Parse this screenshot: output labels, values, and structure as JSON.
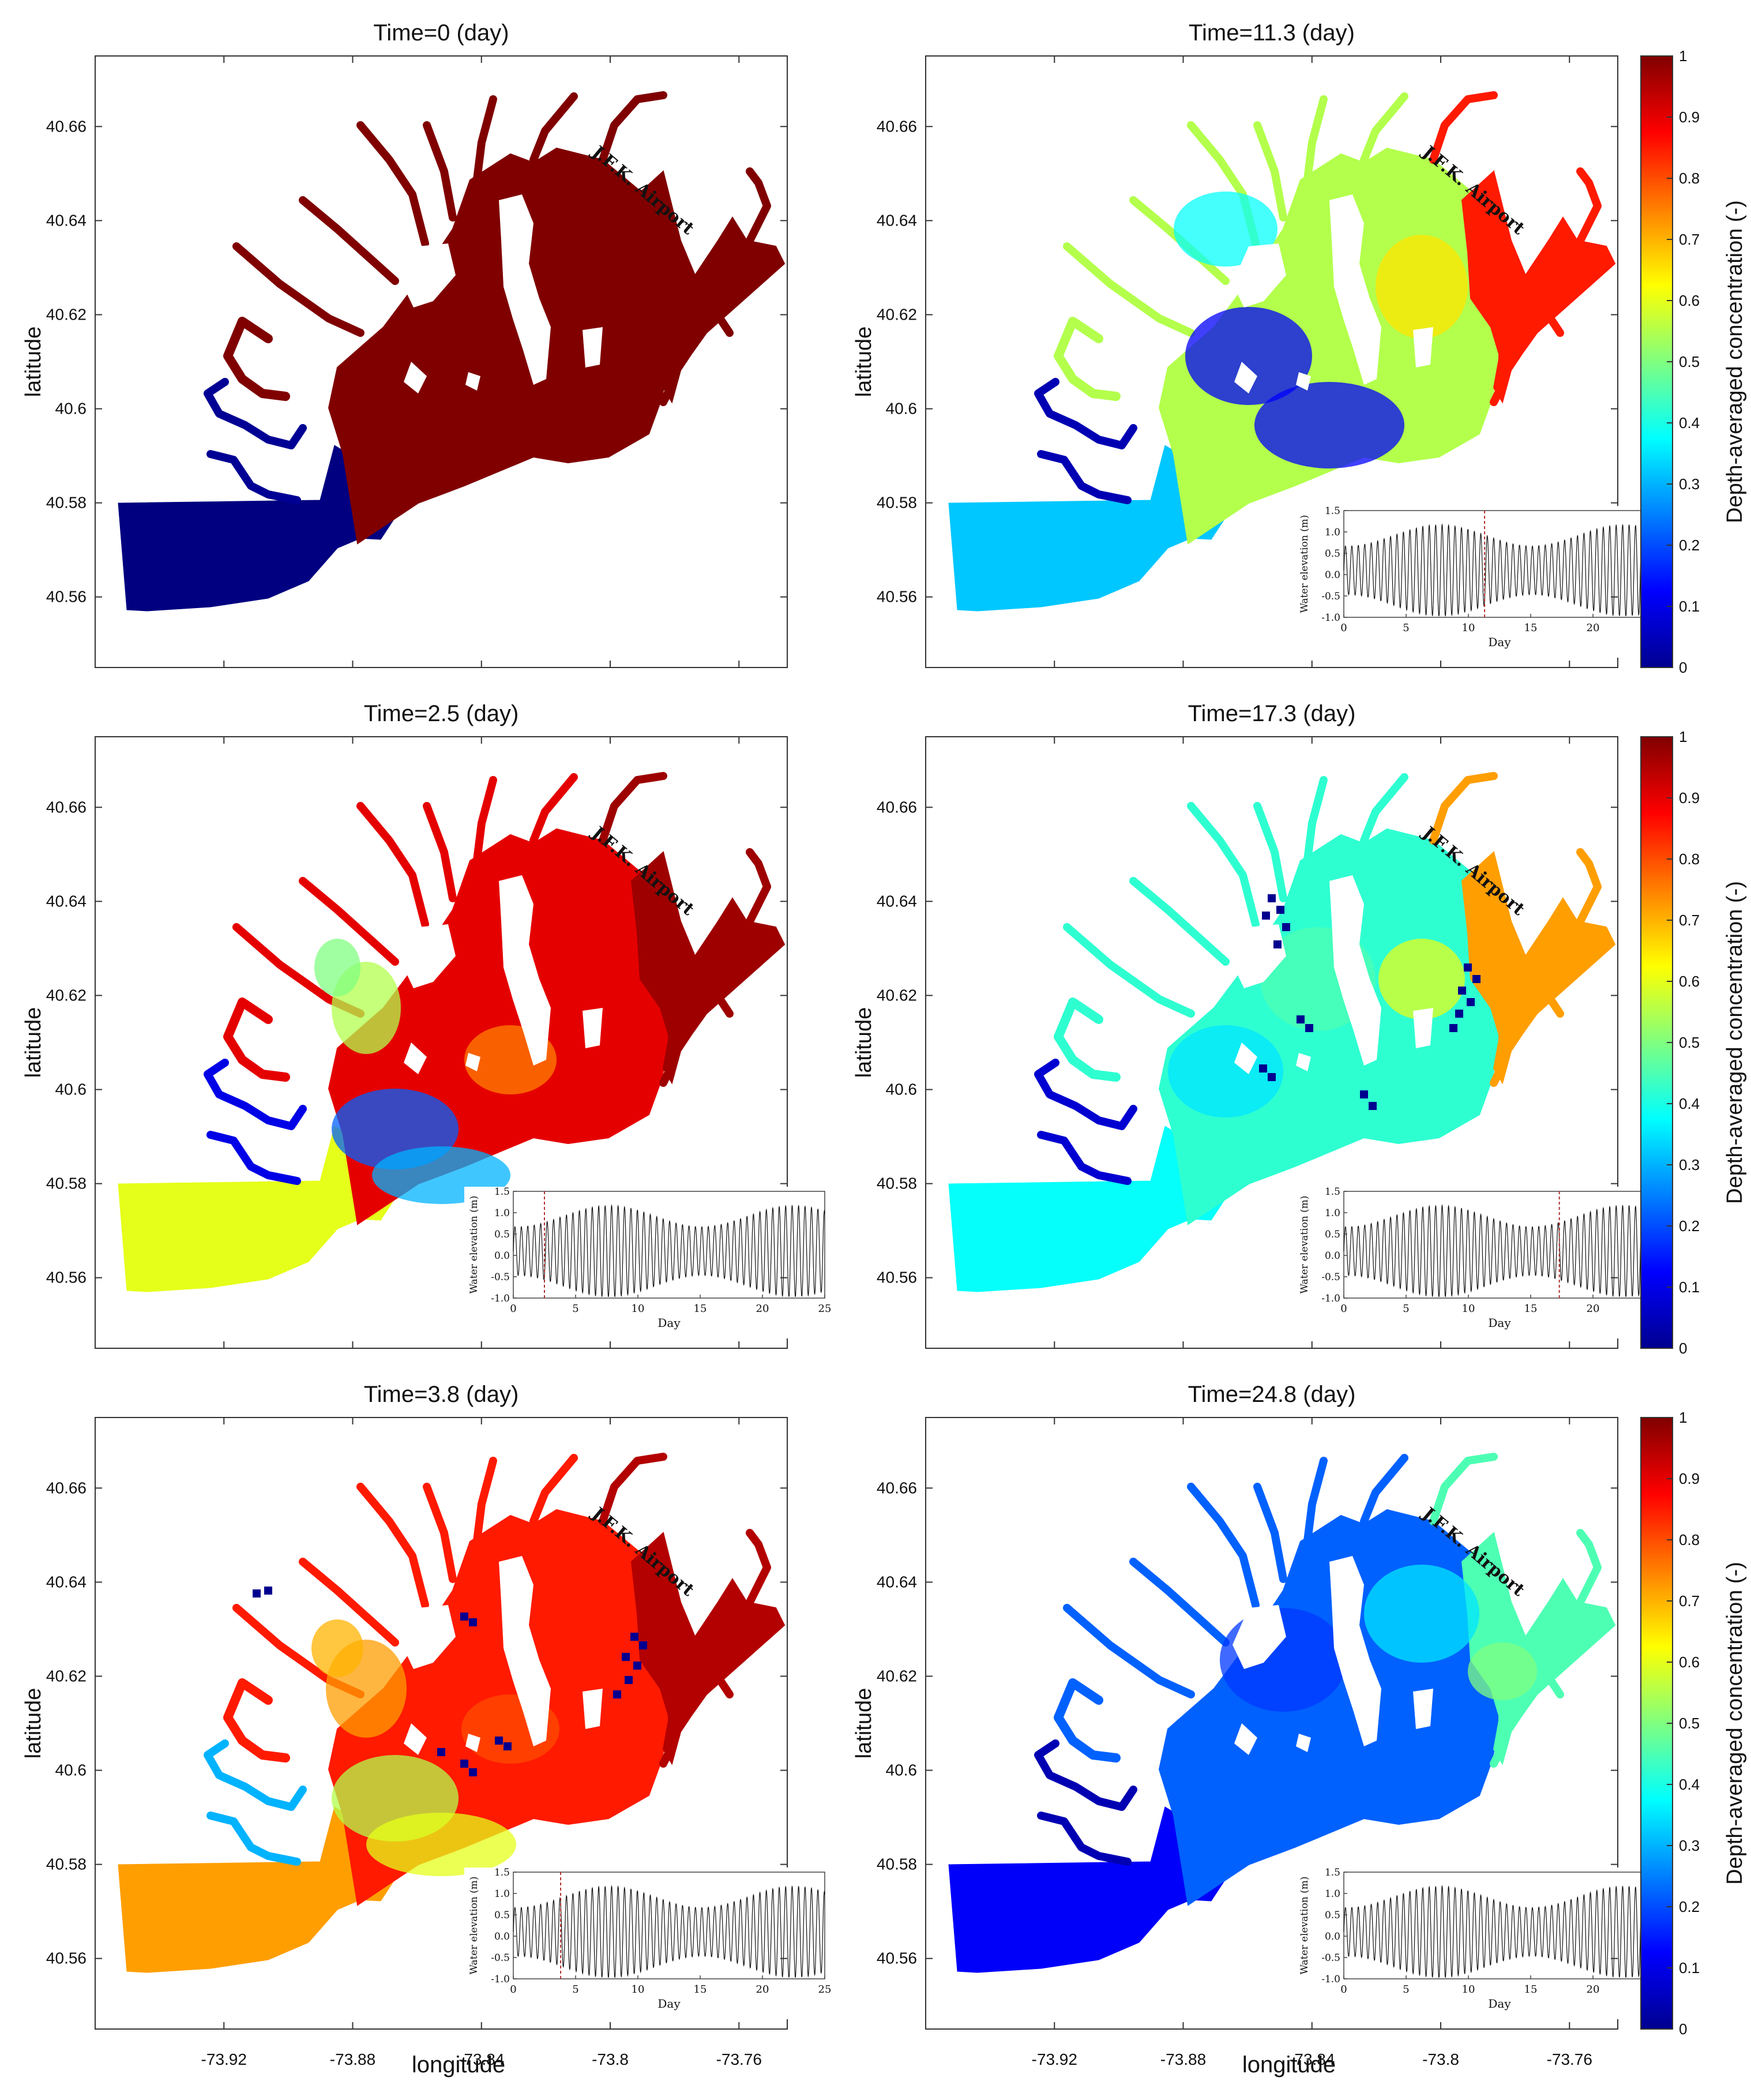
{
  "figure": {
    "xlabel": "longitude",
    "ylabel": "latitude",
    "airport_label": "J.F.K. Airport",
    "colorbar_label": "Depth-averaged concentration (-)"
  },
  "chart_data": {
    "type": "heatmap",
    "xlim": [
      -73.96,
      -73.745
    ],
    "ylim": [
      40.545,
      40.675
    ],
    "xticks": [
      "-73.92",
      "-73.88",
      "-73.84",
      "-73.8",
      "-73.76"
    ],
    "yticks": [
      "40.56",
      "40.58",
      "40.6",
      "40.62",
      "40.64",
      "40.66"
    ],
    "colorbar": {
      "range": [
        0,
        1
      ],
      "ticks": [
        "0",
        "0.1",
        "0.2",
        "0.3",
        "0.4",
        "0.5",
        "0.6",
        "0.7",
        "0.8",
        "0.9",
        "1"
      ],
      "colormap": "jet"
    },
    "panels": [
      {
        "title": "Time=0 (day)",
        "time": 0,
        "inset": false,
        "levels": {
          "west": 0.0,
          "bay": 1.0,
          "east": 1.0,
          "inlet": 0.02
        }
      },
      {
        "title": "Time=11.3 (day)",
        "time": 11.3,
        "inset": true,
        "levels": {
          "west": 0.32,
          "bay": 0.55,
          "east": 0.85,
          "inlet": 0.05
        }
      },
      {
        "title": "Time=2.5 (day)",
        "time": 2.5,
        "inset": true,
        "levels": {
          "west": 0.6,
          "bay": 0.9,
          "east": 0.97,
          "inlet": 0.1
        }
      },
      {
        "title": "Time=17.3 (day)",
        "time": 17.3,
        "inset": true,
        "levels": {
          "west": 0.38,
          "bay": 0.42,
          "east": 0.72,
          "inlet": 0.08
        }
      },
      {
        "title": "Time=3.8 (day)",
        "time": 3.8,
        "inset": true,
        "levels": {
          "west": 0.72,
          "bay": 0.85,
          "east": 0.95,
          "inlet": 0.3
        }
      },
      {
        "title": "Time=24.8 (day)",
        "time": 24.8,
        "inset": true,
        "levels": {
          "west": 0.12,
          "bay": 0.22,
          "east": 0.45,
          "inlet": 0.05
        }
      }
    ],
    "inset": {
      "ylabel": "Water elevation (m)",
      "xlabel": "Day",
      "xlim": [
        0,
        25
      ],
      "ylim": [
        -1.0,
        1.5
      ],
      "xticks": [
        "0",
        "5",
        "10",
        "15",
        "20",
        "25"
      ],
      "yticks": [
        "-1.0",
        "-0.5",
        "0.0",
        "0.5",
        "1.0",
        "1.5"
      ],
      "tidal_period_days": 0.5175,
      "amplitude_range_m": [
        0.55,
        1.1
      ]
    }
  }
}
